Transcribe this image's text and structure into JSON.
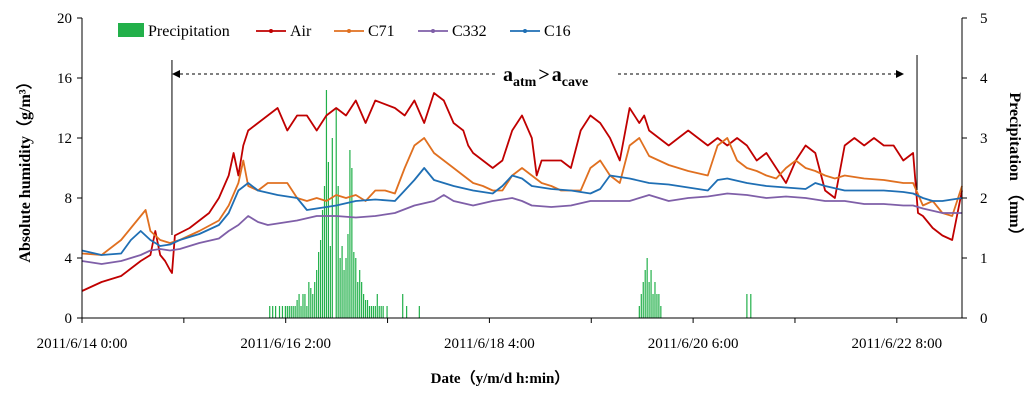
{
  "chart_data": {
    "type": "line",
    "xlabel": "Date（y/m/d h:min）",
    "ylabel_left": "Absolute humidity（g/m³）",
    "ylabel_right": "Precipitation （mm）",
    "ylim_left": [
      0,
      20
    ],
    "ylim_right": [
      0,
      5
    ],
    "yticks_left": [
      "0",
      "4",
      "8",
      "12",
      "16",
      "20"
    ],
    "yticks_right": [
      "0",
      "1",
      "2",
      "3",
      "4",
      "5"
    ],
    "x_range_days": [
      0,
      9
    ],
    "x_tick_labels": [
      {
        "day": 0,
        "label": "2011/6/14 0:00"
      },
      {
        "day": 2.0833,
        "label": "2011/6/16 2:00"
      },
      {
        "day": 4.1667,
        "label": "2011/6/18 4:00"
      },
      {
        "day": 6.25,
        "label": "2011/6/20 6:00"
      },
      {
        "day": 8.3333,
        "label": "2011/6/22 8:00"
      }
    ],
    "grid": false,
    "legend_position": "top-left",
    "annotation": {
      "a1": "a",
      "s1": "atm",
      "op": ">",
      "a2": "a",
      "s2": "cave",
      "range_days": [
        0.92,
        8.54
      ]
    },
    "series": [
      {
        "name": "Air",
        "color": "#c00000",
        "axis": "left",
        "x": [
          0,
          0.2,
          0.4,
          0.5,
          0.6,
          0.7,
          0.75,
          0.8,
          0.85,
          0.9,
          0.92,
          0.95,
          1.1,
          1.3,
          1.4,
          1.5,
          1.55,
          1.6,
          1.65,
          1.7,
          1.8,
          1.9,
          2.0,
          2.1,
          2.2,
          2.3,
          2.4,
          2.5,
          2.6,
          2.7,
          2.8,
          2.9,
          3.0,
          3.2,
          3.3,
          3.4,
          3.5,
          3.6,
          3.7,
          3.8,
          3.9,
          3.95,
          4.0,
          4.1,
          4.2,
          4.3,
          4.4,
          4.5,
          4.6,
          4.65,
          4.7,
          4.8,
          4.9,
          5.0,
          5.1,
          5.2,
          5.3,
          5.4,
          5.5,
          5.6,
          5.7,
          5.75,
          5.8,
          5.9,
          6.0,
          6.1,
          6.2,
          6.3,
          6.4,
          6.5,
          6.6,
          6.7,
          6.8,
          6.9,
          7.0,
          7.1,
          7.2,
          7.3,
          7.4,
          7.5,
          7.6,
          7.7,
          7.8,
          7.9,
          8.0,
          8.1,
          8.2,
          8.3,
          8.4,
          8.5,
          8.55,
          8.6,
          8.7,
          8.8,
          8.9,
          9.0
        ],
        "y": [
          1.8,
          2.4,
          2.8,
          3.3,
          3.8,
          4.2,
          5.8,
          4.2,
          3.8,
          3.2,
          3.0,
          5.5,
          6.0,
          7.0,
          8.0,
          9.5,
          11.0,
          9.5,
          11.5,
          12.5,
          13.0,
          13.5,
          14.0,
          12.5,
          13.5,
          13.5,
          12.5,
          13.5,
          14.0,
          13.5,
          14.5,
          13.0,
          14.5,
          14.0,
          13.5,
          14.5,
          13.0,
          15.0,
          14.5,
          13.0,
          12.5,
          11.5,
          11.0,
          10.5,
          10.0,
          10.5,
          12.5,
          13.5,
          12.0,
          9.5,
          10.5,
          10.5,
          10.5,
          10.0,
          12.5,
          13.5,
          13.0,
          12.0,
          10.5,
          14.0,
          13.0,
          13.5,
          12.5,
          12.0,
          11.5,
          12.0,
          12.5,
          12.0,
          11.5,
          12.0,
          11.5,
          12.0,
          11.5,
          10.5,
          11.0,
          10.0,
          9.0,
          10.5,
          11.5,
          11.0,
          8.5,
          8.0,
          11.5,
          12.0,
          11.5,
          12.0,
          11.5,
          11.5,
          10.5,
          11.0,
          7.0,
          6.8,
          6.0,
          5.5,
          5.2,
          8.5
        ]
      },
      {
        "name": "C71",
        "color": "#e07020",
        "axis": "left",
        "x": [
          0,
          0.2,
          0.4,
          0.5,
          0.6,
          0.65,
          0.7,
          0.8,
          0.9,
          1.0,
          1.2,
          1.4,
          1.5,
          1.6,
          1.65,
          1.7,
          1.8,
          1.9,
          2.0,
          2.1,
          2.2,
          2.3,
          2.4,
          2.5,
          2.6,
          2.7,
          2.8,
          2.9,
          3.0,
          3.1,
          3.2,
          3.3,
          3.4,
          3.5,
          3.6,
          3.7,
          3.8,
          3.9,
          4.0,
          4.1,
          4.2,
          4.3,
          4.4,
          4.5,
          4.6,
          4.7,
          4.8,
          4.9,
          5.0,
          5.1,
          5.2,
          5.3,
          5.4,
          5.5,
          5.6,
          5.7,
          5.8,
          5.9,
          6.0,
          6.2,
          6.4,
          6.5,
          6.6,
          6.7,
          6.8,
          6.9,
          7.0,
          7.1,
          7.2,
          7.3,
          7.4,
          7.5,
          7.6,
          7.7,
          7.8,
          8.0,
          8.2,
          8.4,
          8.5,
          8.6,
          8.7,
          8.8,
          8.9,
          9.0
        ],
        "y": [
          4.3,
          4.2,
          5.2,
          6.0,
          6.8,
          7.2,
          5.8,
          5.2,
          5.0,
          5.2,
          5.8,
          6.5,
          7.5,
          9.0,
          10.5,
          8.8,
          8.5,
          9.0,
          9.0,
          9.0,
          8.0,
          7.8,
          8.0,
          7.8,
          8.2,
          8.0,
          8.2,
          7.8,
          8.5,
          8.5,
          8.3,
          10.0,
          11.5,
          12.0,
          11.0,
          10.5,
          10.0,
          9.5,
          9.0,
          8.8,
          8.5,
          8.5,
          9.5,
          10.0,
          9.5,
          9.0,
          8.8,
          8.5,
          8.5,
          8.5,
          10.0,
          10.5,
          9.5,
          9.0,
          11.5,
          12.0,
          10.8,
          10.5,
          10.2,
          9.8,
          9.5,
          11.5,
          12.0,
          10.5,
          10.0,
          9.8,
          9.5,
          9.3,
          10.0,
          10.5,
          10.0,
          9.8,
          9.5,
          9.3,
          9.5,
          9.3,
          9.2,
          9.0,
          9.0,
          7.5,
          7.8,
          7.0,
          6.8,
          8.8
        ]
      },
      {
        "name": "C332",
        "color": "#7f5fa8",
        "axis": "left",
        "x": [
          0,
          0.2,
          0.4,
          0.5,
          0.6,
          0.7,
          0.8,
          0.9,
          1.0,
          1.2,
          1.4,
          1.5,
          1.6,
          1.7,
          1.8,
          1.9,
          2.0,
          2.2,
          2.4,
          2.6,
          2.8,
          3.0,
          3.2,
          3.4,
          3.6,
          3.7,
          3.8,
          4.0,
          4.2,
          4.4,
          4.5,
          4.6,
          4.8,
          5.0,
          5.2,
          5.4,
          5.6,
          5.8,
          6.0,
          6.2,
          6.4,
          6.6,
          6.8,
          7.0,
          7.2,
          7.4,
          7.6,
          7.8,
          8.0,
          8.2,
          8.4,
          8.5,
          8.6,
          8.8,
          9.0
        ],
        "y": [
          3.8,
          3.6,
          3.8,
          4.0,
          4.2,
          4.5,
          4.6,
          4.5,
          4.6,
          5.0,
          5.3,
          5.8,
          6.2,
          6.8,
          6.4,
          6.2,
          6.3,
          6.5,
          6.8,
          6.8,
          6.7,
          6.8,
          7.0,
          7.5,
          7.8,
          8.2,
          7.8,
          7.5,
          7.8,
          8.0,
          7.8,
          7.5,
          7.4,
          7.5,
          7.8,
          7.8,
          7.8,
          8.2,
          7.8,
          8.0,
          8.1,
          8.3,
          8.2,
          8.0,
          8.1,
          8.0,
          7.8,
          7.8,
          7.6,
          7.6,
          7.5,
          7.5,
          7.3,
          7.0,
          7.0
        ]
      },
      {
        "name": "C16",
        "color": "#1f6fb4",
        "axis": "left",
        "x": [
          0,
          0.2,
          0.4,
          0.5,
          0.6,
          0.7,
          0.8,
          0.9,
          1.0,
          1.2,
          1.4,
          1.5,
          1.6,
          1.7,
          1.8,
          2.0,
          2.2,
          2.3,
          2.4,
          2.6,
          2.8,
          3.0,
          3.2,
          3.3,
          3.4,
          3.5,
          3.6,
          3.8,
          4.0,
          4.2,
          4.3,
          4.4,
          4.5,
          4.6,
          4.8,
          5.0,
          5.2,
          5.3,
          5.4,
          5.6,
          5.8,
          6.0,
          6.2,
          6.4,
          6.5,
          6.6,
          6.8,
          7.0,
          7.2,
          7.4,
          7.5,
          7.6,
          7.8,
          8.0,
          8.2,
          8.4,
          8.5,
          8.6,
          8.7,
          8.8,
          9.0
        ],
        "y": [
          4.5,
          4.2,
          4.3,
          5.2,
          5.8,
          5.2,
          4.8,
          4.9,
          5.2,
          5.6,
          6.2,
          7.0,
          8.5,
          9.0,
          8.5,
          8.2,
          8.0,
          7.2,
          7.3,
          7.5,
          7.8,
          7.9,
          7.8,
          8.5,
          9.2,
          10.0,
          9.2,
          8.8,
          8.5,
          8.3,
          8.8,
          9.5,
          9.3,
          8.8,
          8.6,
          8.5,
          8.3,
          8.6,
          9.5,
          9.3,
          9.0,
          8.9,
          8.7,
          8.5,
          9.2,
          9.3,
          9.0,
          8.8,
          8.7,
          8.6,
          9.0,
          8.8,
          8.5,
          8.5,
          8.5,
          8.4,
          8.3,
          8.0,
          7.8,
          7.8,
          8.0
        ]
      }
    ],
    "precipitation": {
      "name": "Precipitation",
      "color": "#22b04a",
      "axis": "right",
      "x": [
        1.92,
        1.95,
        1.98,
        2.02,
        2.05,
        2.08,
        2.1,
        2.12,
        2.14,
        2.16,
        2.18,
        2.2,
        2.22,
        2.24,
        2.26,
        2.28,
        2.3,
        2.32,
        2.34,
        2.36,
        2.38,
        2.4,
        2.42,
        2.44,
        2.46,
        2.48,
        2.5,
        2.52,
        2.54,
        2.56,
        2.6,
        2.62,
        2.64,
        2.66,
        2.68,
        2.7,
        2.72,
        2.74,
        2.76,
        2.78,
        2.8,
        2.82,
        2.84,
        2.86,
        2.88,
        2.9,
        2.92,
        2.94,
        2.96,
        2.98,
        3.0,
        3.02,
        3.04,
        3.06,
        3.08,
        3.12,
        3.28,
        3.32,
        3.45,
        5.7,
        5.72,
        5.74,
        5.76,
        5.78,
        5.8,
        5.82,
        5.84,
        5.86,
        5.88,
        5.9,
        5.92,
        6.8,
        6.84
      ],
      "values": [
        0.2,
        0.2,
        0.2,
        0.2,
        0.2,
        0.2,
        0.2,
        0.2,
        0.2,
        0.2,
        0.2,
        0.3,
        0.4,
        0.2,
        0.4,
        0.4,
        0.2,
        0.6,
        0.5,
        0.4,
        0.6,
        0.8,
        1.1,
        1.3,
        1.8,
        2.2,
        3.8,
        2.6,
        1.2,
        3.0,
        3.5,
        2.2,
        1.0,
        1.2,
        0.8,
        1.0,
        1.4,
        2.8,
        2.5,
        1.1,
        1.0,
        0.6,
        0.8,
        0.6,
        0.4,
        0.3,
        0.3,
        0.2,
        0.2,
        0.2,
        0.2,
        0.4,
        0.2,
        0.2,
        0.2,
        0.2,
        0.4,
        0.2,
        0.2,
        0.2,
        0.4,
        0.6,
        0.8,
        1.0,
        0.6,
        0.8,
        0.4,
        0.6,
        0.4,
        0.4,
        0.2,
        0.4,
        0.4
      ]
    }
  }
}
